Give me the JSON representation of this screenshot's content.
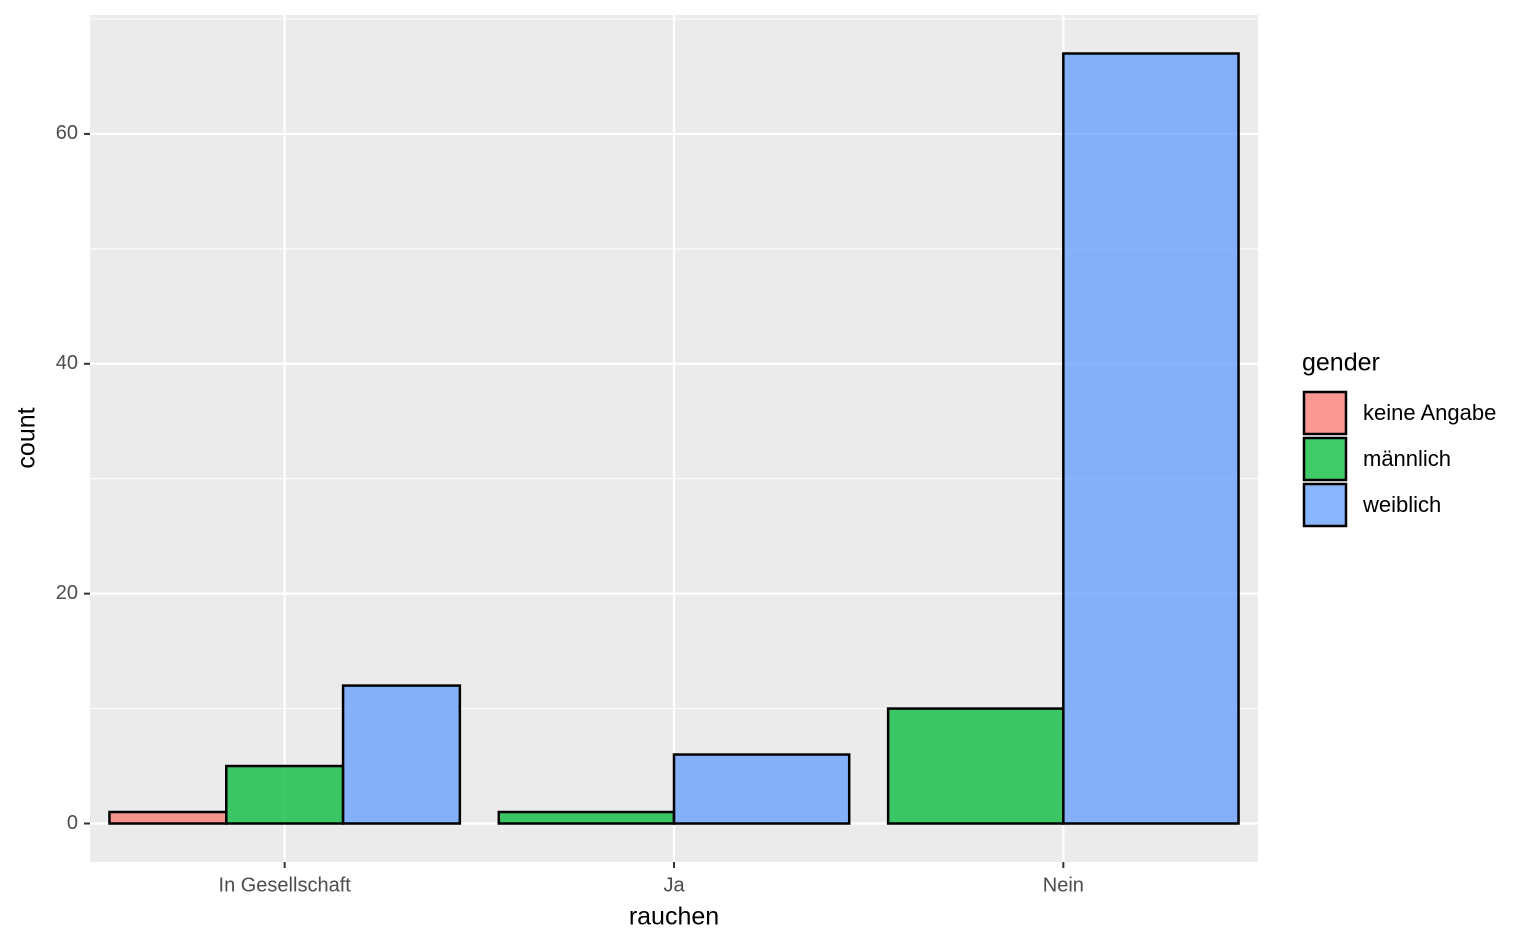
{
  "chart_data": {
    "type": "bar",
    "x_label": "rauchen",
    "y_label": "count",
    "categories": [
      "In Gesellschaft",
      "Ja",
      "Nein"
    ],
    "series": [
      {
        "name": "keine Angabe",
        "color": "#F8766D",
        "values": [
          1,
          null,
          null
        ]
      },
      {
        "name": "männlich",
        "color": "#00BA38",
        "values": [
          5,
          1,
          10
        ]
      },
      {
        "name": "weiblich",
        "color": "#619CFF",
        "values": [
          12,
          6,
          67
        ]
      }
    ],
    "legend_title": "gender",
    "legend": "right",
    "ylim": [
      -3.35,
      70.35
    ],
    "yticks": [
      0,
      20,
      40,
      60
    ],
    "grid": true
  }
}
